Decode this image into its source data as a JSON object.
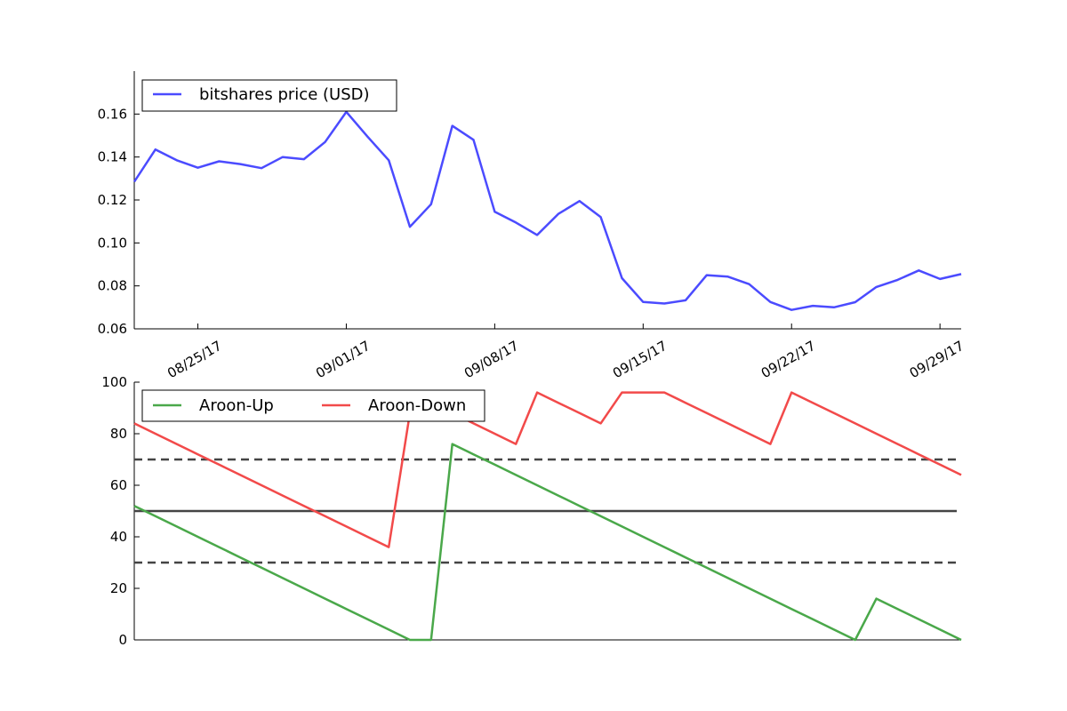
{
  "chart_data": [
    {
      "type": "line",
      "title": "",
      "xlabel": "",
      "ylabel": "",
      "ylim": [
        0.06,
        0.18
      ],
      "yticks": [
        "0.06",
        "0.08",
        "0.10",
        "0.12",
        "0.14",
        "0.16"
      ],
      "x_dates": [
        "08/22/17",
        "08/23/17",
        "08/24/17",
        "08/25/17",
        "08/26/17",
        "08/27/17",
        "08/28/17",
        "08/29/17",
        "08/30/17",
        "08/31/17",
        "09/01/17",
        "09/02/17",
        "09/03/17",
        "09/04/17",
        "09/05/17",
        "09/06/17",
        "09/07/17",
        "09/08/17",
        "09/09/17",
        "09/10/17",
        "09/11/17",
        "09/12/17",
        "09/13/17",
        "09/14/17",
        "09/15/17",
        "09/16/17",
        "09/17/17",
        "09/18/17",
        "09/19/17",
        "09/20/17",
        "09/21/17",
        "09/22/17",
        "09/23/17",
        "09/24/17",
        "09/25/17",
        "09/26/17",
        "09/27/17",
        "09/28/17",
        "09/29/17",
        "09/30/17"
      ],
      "xticks": [
        "08/25/17",
        "09/01/17",
        "09/08/17",
        "09/15/17",
        "09/22/17",
        "09/29/17"
      ],
      "legend_loc": "upper-left",
      "grid": false,
      "series": [
        {
          "name": "bitshares price (USD)",
          "color": "#4b4bff",
          "values": [
            0.1285,
            0.1435,
            0.1385,
            0.135,
            0.138,
            0.1367,
            0.1348,
            0.14,
            0.139,
            0.147,
            0.161,
            0.1495,
            0.1385,
            0.1075,
            0.118,
            0.1545,
            0.148,
            0.1145,
            0.1095,
            0.1037,
            0.1135,
            0.1195,
            0.112,
            0.0836,
            0.0725,
            0.0718,
            0.0733,
            0.085,
            0.0843,
            0.0808,
            0.0725,
            0.0688,
            0.0707,
            0.07,
            0.0724,
            0.0795,
            0.0828,
            0.0872,
            0.0832,
            0.0855
          ]
        }
      ]
    },
    {
      "type": "line",
      "title": "",
      "xlabel": "",
      "ylabel": "",
      "ylim": [
        0,
        100
      ],
      "yticks": [
        "0",
        "20",
        "40",
        "60",
        "80",
        "100"
      ],
      "legend_loc": "upper-left",
      "grid": false,
      "reference_lines": [
        {
          "y": 70,
          "style": "dashed",
          "color": "#444444"
        },
        {
          "y": 50,
          "style": "solid",
          "color": "#444444"
        },
        {
          "y": 30,
          "style": "dashed",
          "color": "#444444"
        }
      ],
      "series": [
        {
          "name": "Aroon-Up",
          "color": "#4aa84a",
          "values": [
            52,
            48,
            44,
            40,
            36,
            32,
            28,
            24,
            20,
            16,
            12,
            8,
            4,
            0,
            0,
            76,
            72,
            68,
            64,
            60,
            56,
            52,
            48,
            44,
            40,
            36,
            32,
            28,
            24,
            20,
            16,
            12,
            8,
            4,
            0,
            16,
            12,
            8,
            4,
            0
          ]
        },
        {
          "name": "Aroon-Down",
          "color": "#f24a4a",
          "values": [
            84,
            80,
            76,
            72,
            68,
            64,
            60,
            56,
            52,
            48,
            44,
            40,
            36,
            88,
            88,
            88,
            84,
            80,
            76,
            96,
            92,
            88,
            84,
            96,
            96,
            96,
            92,
            88,
            84,
            80,
            76,
            96,
            92,
            88,
            84,
            80,
            76,
            72,
            68,
            64
          ]
        }
      ]
    }
  ]
}
